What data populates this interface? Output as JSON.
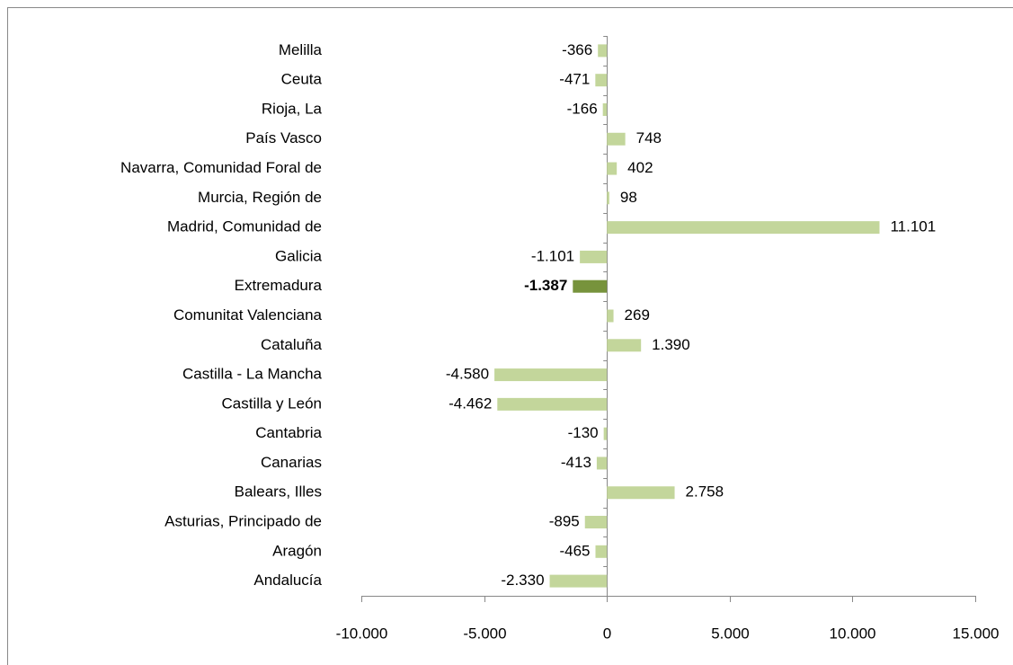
{
  "chart_data": {
    "type": "hbar",
    "categories": [
      "Melilla",
      "Ceuta",
      "Rioja, La",
      "País Vasco",
      "Navarra, Comunidad  Foral de",
      "Murcia, Región de",
      "Madrid, Comunidad de",
      "Galicia",
      "Extremadura",
      "Comunitat Valenciana",
      "Cataluña",
      "Castilla - La Mancha",
      "Castilla y León",
      "Cantabria",
      "Canarias",
      "Balears, Illes",
      "Asturias, Principado de",
      "Aragón",
      "Andalucía"
    ],
    "values": [
      -366,
      -471,
      -166,
      748,
      402,
      98,
      11101,
      -1101,
      -1387,
      269,
      1390,
      -4580,
      -4462,
      -130,
      -413,
      2758,
      -895,
      -465,
      -2330
    ],
    "value_labels": [
      "-366",
      "-471",
      "-166",
      "748",
      "402",
      "98",
      "11.101",
      "-1.101",
      "-1.387",
      "269",
      "1.390",
      "-4.580",
      "-4.462",
      "-130",
      "-413",
      "2.758",
      "-895",
      "-465",
      "-2.330"
    ],
    "color": "#c3d69b",
    "colors": [
      "#c3d69b",
      "#c3d69b",
      "#c3d69b",
      "#c3d69b",
      "#c3d69b",
      "#c3d69b",
      "#c3d69b",
      "#c3d69b",
      "#77933c",
      "#c3d69b",
      "#c3d69b",
      "#c3d69b",
      "#c3d69b",
      "#c3d69b",
      "#c3d69b",
      "#c3d69b",
      "#c3d69b",
      "#c3d69b",
      "#c3d69b"
    ],
    "xlim": [
      -10000,
      15000
    ],
    "xticks": [
      {
        "value": -10000,
        "label": "-10.000"
      },
      {
        "value": -5000,
        "label": "-5.000"
      },
      0,
      {
        "value": 5000,
        "label": "5.000"
      },
      {
        "value": 10000,
        "label": "10.000"
      },
      {
        "value": 15000,
        "label": "15.000"
      }
    ]
  }
}
